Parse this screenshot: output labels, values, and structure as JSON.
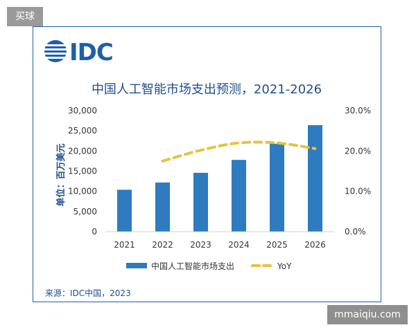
{
  "watermark_top": "买球",
  "watermark_bottom": "mmaiqiu.com",
  "logo_text": "IDC",
  "source": "来源：IDC中国，2023",
  "chart_data": {
    "type": "bar",
    "title": "中国人工智能市场支出预测，2021-2026",
    "ylabel": "单位：百万美元",
    "categories": [
      "2021",
      "2022",
      "2023",
      "2024",
      "2025",
      "2026"
    ],
    "ylim": [
      0,
      30000
    ],
    "yticks": [
      "30,000",
      "25,000",
      "20,000",
      "15,000",
      "10,000",
      "5,000",
      "0"
    ],
    "y2lim": [
      0,
      30
    ],
    "y2ticks": [
      "30.0%",
      "20.0%",
      "10.0%",
      "0.0%"
    ],
    "series": [
      {
        "name": "中国人工智能市场支出",
        "type": "bar",
        "color": "#2e7bbf",
        "values": [
          10400,
          12200,
          14600,
          17800,
          21800,
          26400
        ]
      },
      {
        "name": "YoY",
        "type": "line",
        "axis": "right",
        "color": "#e3c43f",
        "style": "dashed",
        "values": [
          null,
          17.5,
          20.2,
          22.0,
          22.0,
          20.6
        ]
      }
    ],
    "legend_position": "bottom",
    "grid": false
  }
}
